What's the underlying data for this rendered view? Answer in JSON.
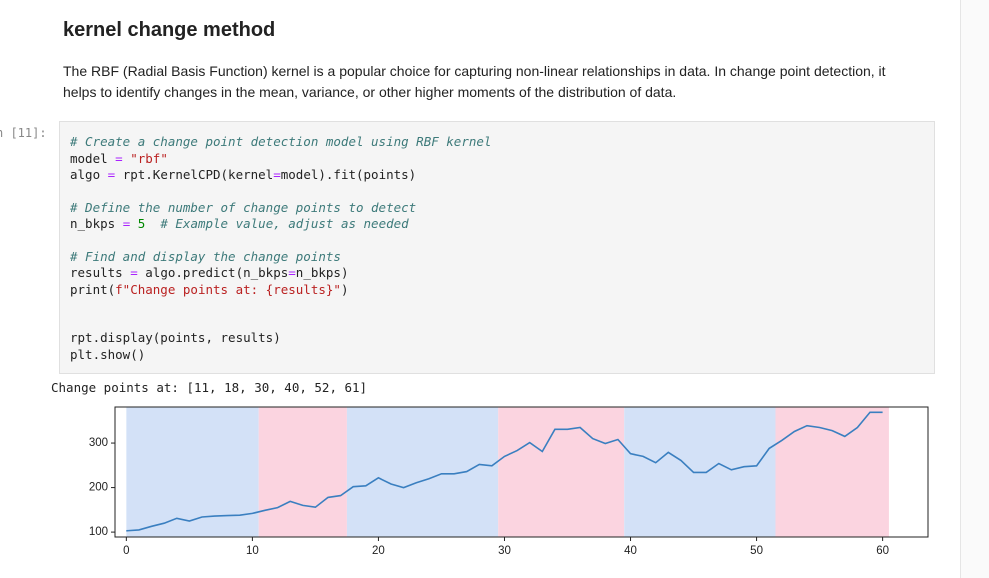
{
  "markdown": {
    "heading": "kernel change method",
    "paragraph": [
      "The RBF (Radial Basis Function) kernel is a popular choice for capturing non-linear relationships in data. In change point detection, it",
      "helps to identify changes in the mean, variance, or other higher moments of the distribution of data."
    ]
  },
  "cell": {
    "prompt": "n [11]:",
    "code_blocks": [
      [
        "# Create a change point detection model using RBF kernel",
        "model = \"rbf\"",
        "algo = rpt.KernelCPD(kernel=model).fit(points)"
      ],
      [
        "# Define the number of change points to detect",
        "n_bkps = 5  # Example value, adjust as needed"
      ],
      [
        "# Find and display the change points",
        "results = algo.predict(n_bkps=n_bkps)",
        "print(f\"Change points at: {results}\")"
      ],
      [
        "rpt.display(points, results)",
        "plt.show()"
      ]
    ]
  },
  "output": {
    "text": "Change points at: [11, 18, 30, 40, 52, 61]",
    "chart": {
      "type": "line",
      "color": "#3a7fc0",
      "span_colors": [
        "#d3e1f7",
        "#fbd4e0"
      ],
      "breakpoints": [
        11,
        18,
        30,
        40,
        52,
        61
      ],
      "x": [
        0,
        1,
        2,
        3,
        4,
        5,
        6,
        7,
        8,
        9,
        10,
        11,
        12,
        13,
        14,
        15,
        16,
        17,
        18,
        19,
        20,
        21,
        22,
        23,
        24,
        25,
        26,
        27,
        28,
        29,
        30,
        31,
        32,
        33,
        34,
        35,
        36,
        37,
        38,
        39,
        40,
        41,
        42,
        43,
        44,
        45,
        46,
        47,
        48,
        49,
        50,
        51,
        52,
        53,
        54,
        55,
        56,
        57,
        58,
        59,
        60
      ],
      "values": [
        103,
        105,
        113,
        120,
        131,
        125,
        134,
        136,
        137,
        138,
        142,
        149,
        155,
        169,
        160,
        156,
        178,
        182,
        202,
        204,
        222,
        208,
        200,
        211,
        220,
        231,
        231,
        236,
        252,
        249,
        270,
        283,
        301,
        281,
        331,
        331,
        335,
        310,
        299,
        308,
        276,
        270,
        256,
        279,
        261,
        234,
        234,
        254,
        240,
        247,
        249,
        288,
        306,
        326,
        339,
        335,
        328,
        315,
        335,
        369,
        369
      ],
      "xlim": [
        -0.9,
        63.6
      ],
      "ylim": [
        89,
        381
      ],
      "xticks": [
        0,
        10,
        20,
        30,
        40,
        50,
        60
      ],
      "yticks": [
        100,
        200,
        300
      ]
    }
  }
}
